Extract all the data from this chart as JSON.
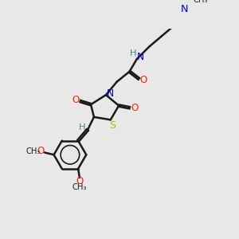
{
  "background_color": "#e8e8e8",
  "bond_color": "#1a1a1a",
  "bond_width": 1.8,
  "dbl_off": 0.06,
  "colors": {
    "O": "#ff2200",
    "N": "#0000ee",
    "S": "#b8b800",
    "H": "#3a8888"
  },
  "xlim": [
    0,
    10
  ],
  "ylim": [
    0,
    10
  ]
}
